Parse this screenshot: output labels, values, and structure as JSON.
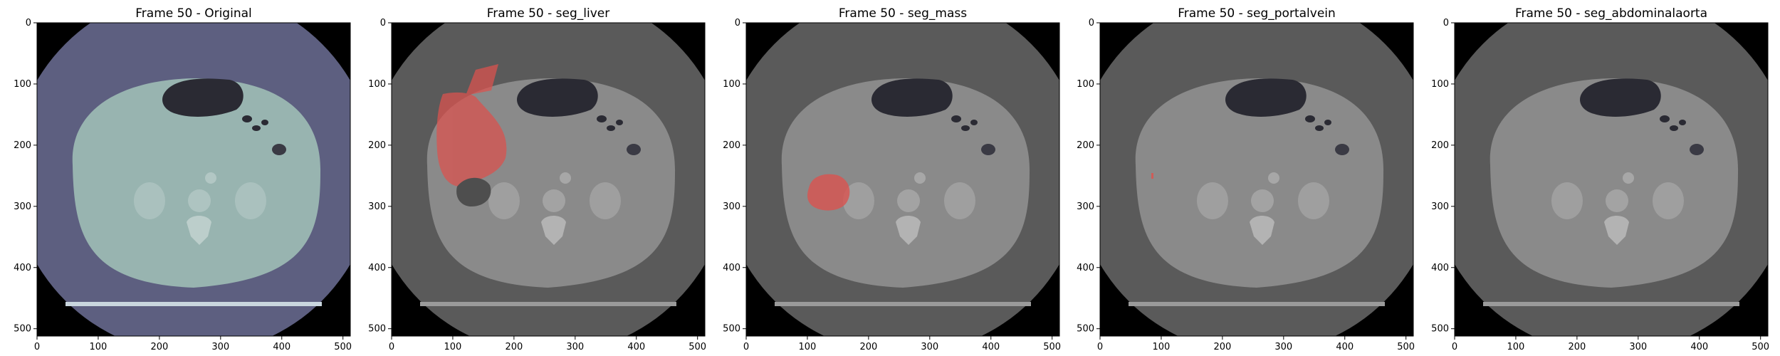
{
  "figure": {
    "panels": [
      {
        "title": "Frame 50 - Original",
        "mode": "original",
        "overlay": "none"
      },
      {
        "title": "Frame 50 - seg_liver",
        "mode": "gray",
        "overlay": "liver"
      },
      {
        "title": "Frame 50 - seg_mass",
        "mode": "gray",
        "overlay": "mass"
      },
      {
        "title": "Frame 50 - seg_portalvein",
        "mode": "gray",
        "overlay": "portalvein"
      },
      {
        "title": "Frame 50 - seg_abdominalaorta",
        "mode": "gray",
        "overlay": "none"
      }
    ],
    "axis": {
      "x_ticks": [
        "0",
        "100",
        "200",
        "300",
        "400",
        "500"
      ],
      "y_ticks": [
        "0",
        "100",
        "200",
        "300",
        "400",
        "500"
      ],
      "range": [
        0,
        512
      ]
    },
    "colors": {
      "original_body": "#98b4b0",
      "original_rim": "#5d5f80",
      "gray_body": "#8a8a8a",
      "gray_rim": "#5a5a5a",
      "overlay": "#d9534f"
    }
  }
}
